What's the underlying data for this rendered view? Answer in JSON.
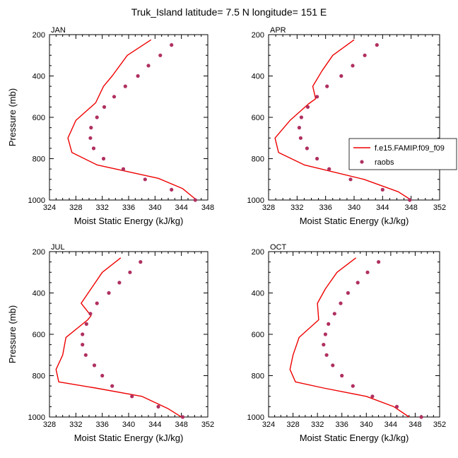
{
  "figure": {
    "title": "Truk_Island  latitude= 7.5 N longitude= 151 E"
  },
  "legend": {
    "model_label": "f.e15.FAMIP.f09_f09",
    "obs_label": "raobs"
  },
  "colors": {
    "model": "#ee0000",
    "obs": "#b03060",
    "axis": "#000000"
  },
  "chart_data": [
    {
      "type": "line",
      "title": "JAN",
      "xlabel": "Moist Static Energy (kJ/kg)",
      "ylabel": "Pressure (mb)",
      "xlim": [
        324,
        348
      ],
      "xticks": [
        324,
        328,
        332,
        336,
        340,
        344,
        348
      ],
      "ylim": [
        200,
        1000
      ],
      "yticks": [
        200,
        400,
        600,
        800,
        1000
      ],
      "y_inverted": true,
      "series": [
        {
          "name": "f.e15.FAMIP.f09_f09",
          "style": "line",
          "points": [
            [
              339.4,
              225
            ],
            [
              335.8,
              300
            ],
            [
              333.5,
              400
            ],
            [
              332.2,
              450
            ],
            [
              331.0,
              530
            ],
            [
              328.0,
              615
            ],
            [
              326.8,
              700
            ],
            [
              327.4,
              770
            ],
            [
              331.2,
              830
            ],
            [
              340.5,
              895
            ],
            [
              344.2,
              945
            ],
            [
              346.3,
              1000
            ]
          ]
        },
        {
          "name": "raobs",
          "style": "marker",
          "points": [
            [
              342.5,
              250
            ],
            [
              340.8,
              300
            ],
            [
              339.0,
              350
            ],
            [
              337.4,
              400
            ],
            [
              335.5,
              450
            ],
            [
              333.8,
              500
            ],
            [
              332.3,
              550
            ],
            [
              331.2,
              600
            ],
            [
              330.3,
              650
            ],
            [
              330.2,
              700
            ],
            [
              330.7,
              750
            ],
            [
              332.2,
              800
            ],
            [
              335.2,
              850
            ],
            [
              338.5,
              900
            ],
            [
              342.5,
              950
            ],
            [
              346.1,
              1000
            ]
          ]
        }
      ]
    },
    {
      "type": "line",
      "title": "APR",
      "xlabel": "Moist Static Energy (kJ/kg)",
      "ylabel": "Pressure (mb)",
      "xlim": [
        328,
        352
      ],
      "xticks": [
        328,
        332,
        336,
        340,
        344,
        348,
        352
      ],
      "ylim": [
        200,
        1000
      ],
      "yticks": [
        200,
        400,
        600,
        800,
        1000
      ],
      "y_inverted": true,
      "series": [
        {
          "name": "f.e15.FAMIP.f09_f09",
          "style": "line",
          "points": [
            [
              340.0,
              225
            ],
            [
              337.0,
              300
            ],
            [
              335.5,
              375
            ],
            [
              334.2,
              450
            ],
            [
              334.6,
              510
            ],
            [
              333.6,
              535
            ],
            [
              331.0,
              615
            ],
            [
              328.9,
              700
            ],
            [
              329.4,
              770
            ],
            [
              333.0,
              830
            ],
            [
              341.4,
              900
            ],
            [
              346.2,
              960
            ],
            [
              348.0,
              1000
            ]
          ]
        },
        {
          "name": "raobs",
          "style": "marker",
          "points": [
            [
              343.2,
              250
            ],
            [
              341.5,
              300
            ],
            [
              339.8,
              350
            ],
            [
              338.2,
              400
            ],
            [
              336.2,
              450
            ],
            [
              334.8,
              500
            ],
            [
              333.5,
              550
            ],
            [
              332.6,
              600
            ],
            [
              332.3,
              650
            ],
            [
              332.5,
              700
            ],
            [
              333.4,
              750
            ],
            [
              334.8,
              800
            ],
            [
              336.5,
              850
            ],
            [
              339.5,
              900
            ],
            [
              344.0,
              950
            ],
            [
              347.8,
              1000
            ]
          ]
        }
      ]
    },
    {
      "type": "line",
      "title": "JUL",
      "xlabel": "Moist Static Energy (kJ/kg)",
      "ylabel": "Pressure (mb)",
      "xlim": [
        328,
        352
      ],
      "xticks": [
        328,
        332,
        336,
        340,
        344,
        348,
        352
      ],
      "ylim": [
        200,
        1000
      ],
      "yticks": [
        200,
        400,
        600,
        800,
        1000
      ],
      "y_inverted": true,
      "series": [
        {
          "name": "f.e15.FAMIP.f09_f09",
          "style": "line",
          "points": [
            [
              338.8,
              230
            ],
            [
              336.0,
              300
            ],
            [
              334.3,
              380
            ],
            [
              332.8,
              450
            ],
            [
              334.3,
              510
            ],
            [
              333.8,
              530
            ],
            [
              330.5,
              615
            ],
            [
              330.0,
              700
            ],
            [
              329.0,
              770
            ],
            [
              329.4,
              830
            ],
            [
              335.0,
              860
            ],
            [
              342.0,
              900
            ],
            [
              346.0,
              960
            ],
            [
              348.0,
              1000
            ]
          ]
        },
        {
          "name": "raobs",
          "style": "marker",
          "points": [
            [
              341.8,
              250
            ],
            [
              340.2,
              300
            ],
            [
              338.6,
              350
            ],
            [
              337.0,
              400
            ],
            [
              335.2,
              450
            ],
            [
              334.2,
              500
            ],
            [
              333.6,
              550
            ],
            [
              333.0,
              600
            ],
            [
              333.0,
              650
            ],
            [
              333.5,
              700
            ],
            [
              334.8,
              750
            ],
            [
              336.0,
              800
            ],
            [
              337.5,
              850
            ],
            [
              340.5,
              900
            ],
            [
              344.5,
              950
            ],
            [
              348.2,
              1000
            ]
          ]
        }
      ]
    },
    {
      "type": "line",
      "title": "OCT",
      "xlabel": "Moist Static Energy (kJ/kg)",
      "ylabel": "Pressure (mb)",
      "xlim": [
        324,
        352
      ],
      "xticks": [
        324,
        328,
        332,
        336,
        340,
        344,
        348,
        352
      ],
      "ylim": [
        200,
        1000
      ],
      "yticks": [
        200,
        400,
        600,
        800,
        1000
      ],
      "y_inverted": true,
      "series": [
        {
          "name": "f.e15.FAMIP.f09_f09",
          "style": "line",
          "points": [
            [
              338.3,
              230
            ],
            [
              335.2,
              300
            ],
            [
              333.3,
              380
            ],
            [
              332.0,
              450
            ],
            [
              332.2,
              530
            ],
            [
              329.0,
              615
            ],
            [
              328.0,
              700
            ],
            [
              327.5,
              770
            ],
            [
              328.4,
              830
            ],
            [
              333.0,
              860
            ],
            [
              340.0,
              900
            ],
            [
              344.5,
              950
            ],
            [
              347.0,
              1000
            ]
          ]
        },
        {
          "name": "raobs",
          "style": "marker",
          "points": [
            [
              342.0,
              250
            ],
            [
              340.2,
              300
            ],
            [
              338.6,
              350
            ],
            [
              337.0,
              400
            ],
            [
              335.8,
              450
            ],
            [
              334.8,
              500
            ],
            [
              333.8,
              550
            ],
            [
              333.3,
              600
            ],
            [
              333.0,
              650
            ],
            [
              333.5,
              700
            ],
            [
              334.5,
              750
            ],
            [
              336.0,
              800
            ],
            [
              337.8,
              850
            ],
            [
              341.0,
              900
            ],
            [
              345.0,
              950
            ],
            [
              349.0,
              1000
            ]
          ]
        }
      ]
    }
  ]
}
